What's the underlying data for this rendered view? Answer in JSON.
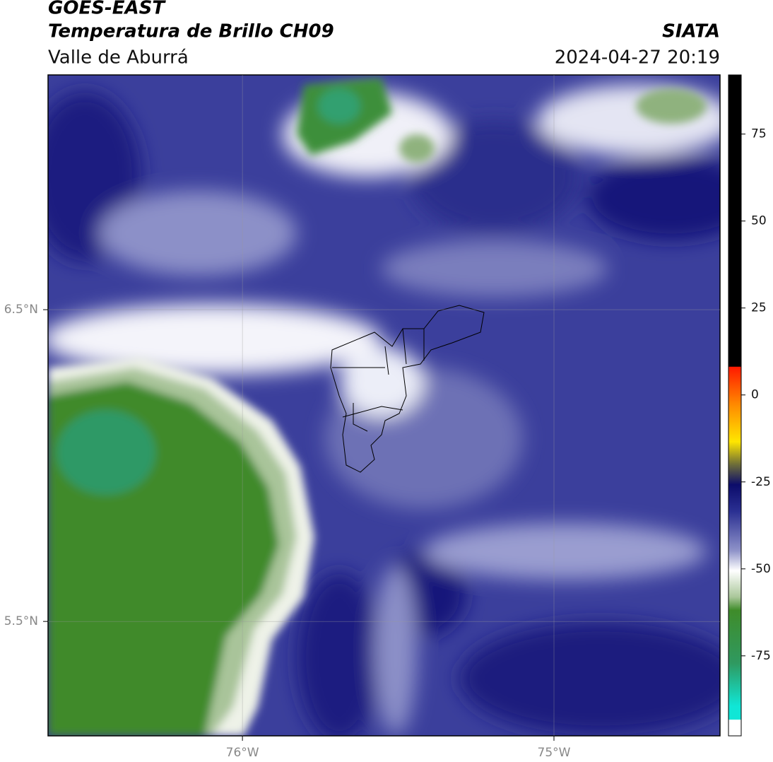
{
  "header": {
    "title": "GOES-EAST",
    "subtitle": "Temperatura de Brillo CH09",
    "region": "Valle de Aburrá",
    "agency": "SIATA",
    "timestamp": "2024-04-27 20:19"
  },
  "map": {
    "xlim": [
      -76.624,
      -74.467
    ],
    "ylim": [
      5.133,
      7.253
    ],
    "xticks": [
      {
        "value": -76,
        "label": "76°W"
      },
      {
        "value": -75,
        "label": "75°W"
      }
    ],
    "yticks": [
      {
        "value": 6.5,
        "label": "6.5°N"
      },
      {
        "value": 5.5,
        "label": "5.5°N"
      }
    ],
    "grid": true
  },
  "colorbar": {
    "lim": [
      -98,
      92
    ],
    "ticks": [
      75,
      50,
      25,
      0,
      -25,
      -50,
      -75
    ]
  }
}
